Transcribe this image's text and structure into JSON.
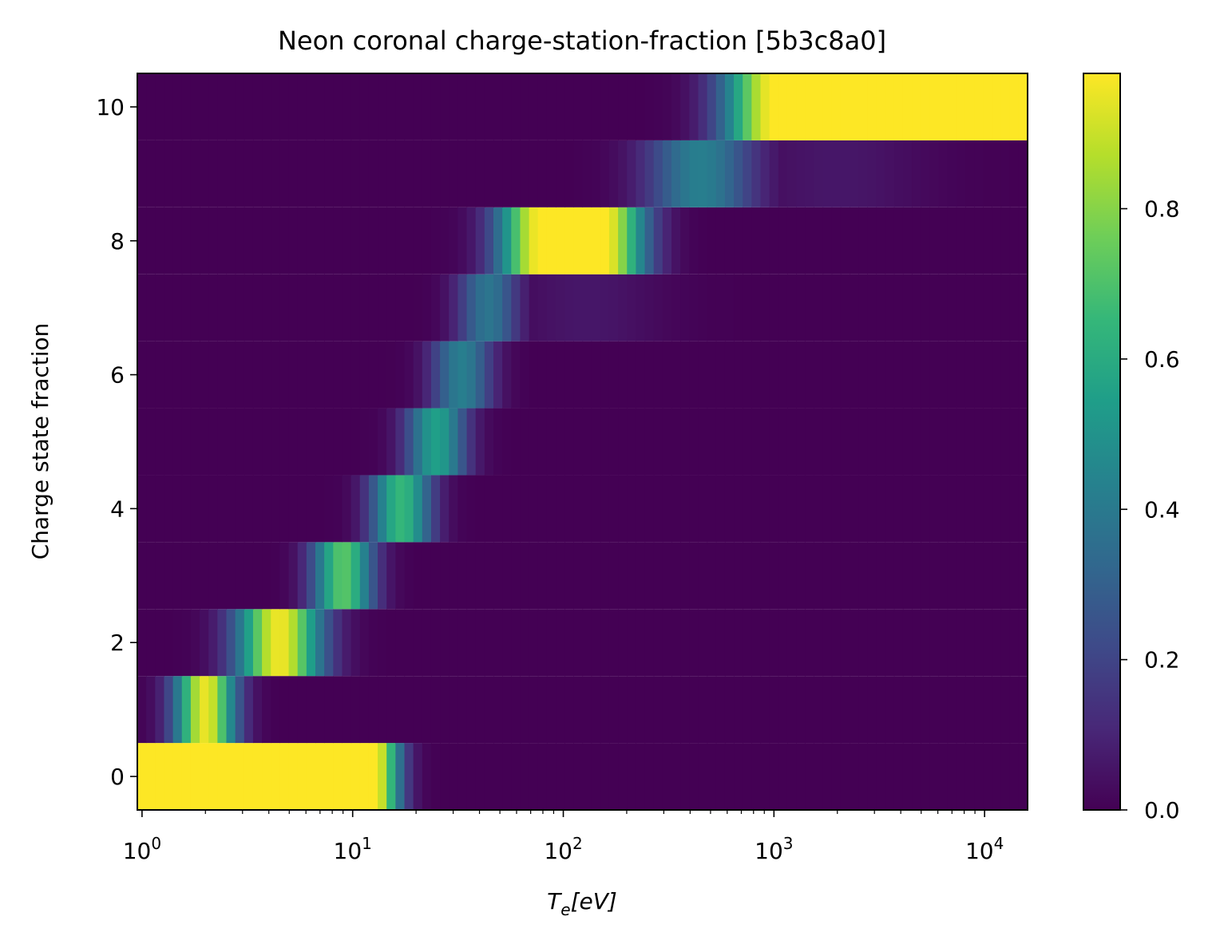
{
  "chart_data": {
    "type": "heatmap",
    "title": "Neon coronal charge-station-fraction [5b3c8a0]",
    "xlabel": {
      "base": "T",
      "sub": "e",
      "rest": "[eV]"
    },
    "ylabel": "Charge state fraction",
    "xscale": "log",
    "xlim": [
      0.95,
      16000
    ],
    "ylim": [
      -0.5,
      10.5
    ],
    "x_ticks": [
      {
        "value": 1,
        "base": "10",
        "exp": "0"
      },
      {
        "value": 10,
        "base": "10",
        "exp": "1"
      },
      {
        "value": 100,
        "base": "10",
        "exp": "2"
      },
      {
        "value": 1000,
        "base": "10",
        "exp": "3"
      },
      {
        "value": 10000,
        "base": "10",
        "exp": "4"
      }
    ],
    "y_ticks": [
      {
        "value": 0,
        "label": "0"
      },
      {
        "value": 2,
        "label": "2"
      },
      {
        "value": 4,
        "label": "4"
      },
      {
        "value": 6,
        "label": "6"
      },
      {
        "value": 8,
        "label": "8"
      },
      {
        "value": 10,
        "label": "10"
      }
    ],
    "colorbar": {
      "colormap": "viridis",
      "vmin": 0.0,
      "vmax": 0.98,
      "ticks": [
        {
          "value": 0.0,
          "label": "0.0"
        },
        {
          "value": 0.2,
          "label": "0.2"
        },
        {
          "value": 0.4,
          "label": "0.4"
        },
        {
          "value": 0.6,
          "label": "0.6"
        },
        {
          "value": 0.8,
          "label": "0.8"
        }
      ]
    },
    "charge_states": [
      0,
      1,
      2,
      3,
      4,
      5,
      6,
      7,
      8,
      9,
      10
    ],
    "rows": [
      {
        "z": 0,
        "peaks": [
          {
            "x": 0.9,
            "peak": 0.98,
            "plateau": 1.15,
            "width": 0.085
          }
        ]
      },
      {
        "z": 1,
        "peaks": [
          {
            "x": 2.0,
            "peak": 0.95,
            "plateau": 0,
            "width": 0.1
          }
        ]
      },
      {
        "z": 2,
        "peaks": [
          {
            "x": 4.5,
            "peak": 0.96,
            "plateau": 0,
            "width": 0.14
          }
        ]
      },
      {
        "z": 3,
        "peaks": [
          {
            "x": 9.0,
            "peak": 0.72,
            "plateau": 0,
            "width": 0.1
          }
        ]
      },
      {
        "z": 4,
        "peaks": [
          {
            "x": 17.0,
            "peak": 0.65,
            "plateau": 0,
            "width": 0.1
          }
        ]
      },
      {
        "z": 5,
        "peaks": [
          {
            "x": 25.0,
            "peak": 0.55,
            "plateau": 0,
            "width": 0.1
          }
        ]
      },
      {
        "z": 6,
        "peaks": [
          {
            "x": 33.0,
            "peak": 0.42,
            "plateau": 0,
            "width": 0.1
          }
        ]
      },
      {
        "z": 7,
        "peaks": [
          {
            "x": 44.0,
            "peak": 0.38,
            "plateau": 0,
            "width": 0.1
          },
          {
            "x": 130,
            "peak": 0.06,
            "plateau": 0,
            "width": 0.25
          }
        ]
      },
      {
        "z": 8,
        "peaks": [
          {
            "x": 110,
            "peak": 0.98,
            "plateau": 0.15,
            "width": 0.14
          }
        ]
      },
      {
        "z": 9,
        "peaks": [
          {
            "x": 450,
            "peak": 0.42,
            "plateau": 0,
            "width": 0.18
          },
          {
            "x": 2000,
            "peak": 0.06,
            "plateau": 0,
            "width": 0.3
          }
        ]
      },
      {
        "z": 10,
        "peaks": [
          {
            "x": 16000,
            "peak": 0.98,
            "plateau": 1.2,
            "width": 0.17
          }
        ]
      }
    ]
  }
}
